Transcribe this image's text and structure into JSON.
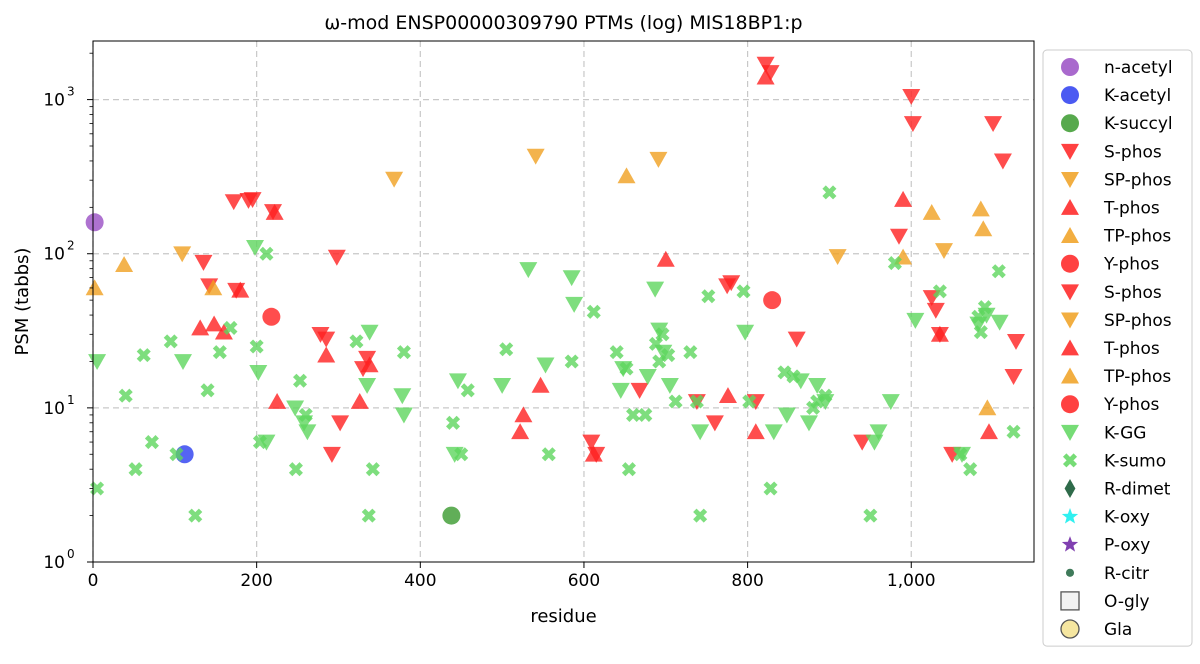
{
  "chart_data": {
    "type": "scatter",
    "title": "ω-mod ENSP00000309790 PTMs (log) MIS18BP1:p",
    "xlabel": "residue",
    "ylabel": "PSM (tabbs)",
    "xlim": [
      0,
      1150
    ],
    "ylim": [
      1,
      2400
    ],
    "yscale": "log",
    "grid": true,
    "legend_placement": "right-outside",
    "x_ticks": [
      {
        "value": 0,
        "label": "0"
      },
      {
        "value": 200,
        "label": "200"
      },
      {
        "value": 400,
        "label": "400"
      },
      {
        "value": 600,
        "label": "600"
      },
      {
        "value": 800,
        "label": "800"
      },
      {
        "value": 1000,
        "label": "1,000"
      }
    ],
    "y_ticks": [
      {
        "value": 1,
        "base": "10",
        "exp": "0"
      },
      {
        "value": 10,
        "base": "10",
        "exp": "1"
      },
      {
        "value": 100,
        "base": "10",
        "exp": "2"
      },
      {
        "value": 1000,
        "base": "10",
        "exp": "3"
      }
    ],
    "legend": [
      {
        "label": "n-acetyl",
        "marker": "circle",
        "color": "#9a4fc4"
      },
      {
        "label": "K-acetyl",
        "marker": "circle",
        "color": "#2b3df0"
      },
      {
        "label": "K-succyl",
        "marker": "circle",
        "color": "#3a9a2e"
      },
      {
        "label": "S-phos",
        "marker": "triangle-down",
        "color": "#ff2020"
      },
      {
        "label": "SP-phos",
        "marker": "triangle-down",
        "color": "#f0a020"
      },
      {
        "label": "T-phos",
        "marker": "triangle-up",
        "color": "#ff2020"
      },
      {
        "label": "TP-phos",
        "marker": "triangle-up",
        "color": "#f0a020"
      },
      {
        "label": "Y-phos",
        "marker": "circle",
        "color": "#ff2020"
      },
      {
        "label": "S-phos",
        "marker": "triangle-down",
        "color": "#ff2020"
      },
      {
        "label": "SP-phos",
        "marker": "triangle-down",
        "color": "#f0a020"
      },
      {
        "label": "T-phos",
        "marker": "triangle-up",
        "color": "#ff2020"
      },
      {
        "label": "TP-phos",
        "marker": "triangle-up",
        "color": "#f0a020"
      },
      {
        "label": "Y-phos",
        "marker": "circle",
        "color": "#ff2020"
      },
      {
        "label": "K-GG",
        "marker": "triangle-down",
        "color": "#5ed65e"
      },
      {
        "label": "K-sumo",
        "marker": "x",
        "color": "#5ed65e"
      },
      {
        "label": "R-dimet",
        "marker": "diamond",
        "color": "#2f6b4a"
      },
      {
        "label": "K-oxy",
        "marker": "star",
        "color": "#30f0f0"
      },
      {
        "label": "P-oxy",
        "marker": "star",
        "color": "#8040b0"
      },
      {
        "label": "R-citr",
        "marker": "small-circle",
        "color": "#3f7a5a"
      },
      {
        "label": "O-gly",
        "marker": "square",
        "color": "#f2f2f2"
      },
      {
        "label": "Gla",
        "marker": "circle-outline",
        "color": "#f5e6a0"
      }
    ],
    "series": [
      {
        "name": "n-acetyl",
        "marker": "circle",
        "color": "#9a4fc4",
        "points": [
          [
            2,
            160
          ]
        ]
      },
      {
        "name": "K-acetyl",
        "marker": "circle",
        "color": "#2b3df0",
        "points": [
          [
            112,
            5
          ]
        ]
      },
      {
        "name": "K-succyl",
        "marker": "circle",
        "color": "#3a9a2e",
        "points": [
          [
            438,
            2
          ]
        ]
      },
      {
        "name": "S-phos",
        "marker": "triangle-down",
        "color": "#ff2020",
        "points": [
          [
            135,
            88
          ],
          [
            142,
            62
          ],
          [
            175,
            58
          ],
          [
            172,
            218
          ],
          [
            190,
            222
          ],
          [
            195,
            225
          ],
          [
            220,
            188
          ],
          [
            278,
            30
          ],
          [
            285,
            28
          ],
          [
            292,
            5
          ],
          [
            298,
            95
          ],
          [
            302,
            8
          ],
          [
            330,
            18
          ],
          [
            335,
            21
          ],
          [
            609,
            6
          ],
          [
            615,
            5
          ],
          [
            668,
            13
          ],
          [
            738,
            11
          ],
          [
            760,
            8
          ],
          [
            775,
            62
          ],
          [
            780,
            65
          ],
          [
            810,
            11
          ],
          [
            822,
            1700
          ],
          [
            828,
            1500
          ],
          [
            860,
            28
          ],
          [
            940,
            6
          ],
          [
            985,
            130
          ],
          [
            1000,
            1050
          ],
          [
            1002,
            700
          ],
          [
            1025,
            52
          ],
          [
            1030,
            43
          ],
          [
            1050,
            5
          ],
          [
            1100,
            700
          ],
          [
            1112,
            400
          ],
          [
            1125,
            16
          ],
          [
            1128,
            27
          ],
          [
            1035,
            30
          ]
        ]
      },
      {
        "name": "SP-phos",
        "marker": "triangle-down",
        "color": "#f0a020",
        "points": [
          [
            109,
            100
          ],
          [
            368,
            305
          ],
          [
            541,
            430
          ],
          [
            691,
            410
          ],
          [
            910,
            96
          ],
          [
            1040,
            105
          ]
        ]
      },
      {
        "name": "T-phos",
        "marker": "triangle-up",
        "color": "#ff2020",
        "points": [
          [
            131,
            33
          ],
          [
            148,
            35
          ],
          [
            160,
            31
          ],
          [
            180,
            58
          ],
          [
            222,
            185
          ],
          [
            225,
            11
          ],
          [
            285,
            22
          ],
          [
            326,
            11
          ],
          [
            338,
            19
          ],
          [
            522,
            7
          ],
          [
            526,
            9
          ],
          [
            547,
            14
          ],
          [
            612,
            5
          ],
          [
            700,
            92
          ],
          [
            776,
            12
          ],
          [
            810,
            7
          ],
          [
            822,
            1400
          ],
          [
            990,
            225
          ],
          [
            1035,
            30
          ],
          [
            1095,
            7
          ]
        ]
      },
      {
        "name": "TP-phos",
        "marker": "triangle-up",
        "color": "#f0a020",
        "points": [
          [
            2,
            60
          ],
          [
            38,
            85
          ],
          [
            147,
            60
          ],
          [
            652,
            320
          ],
          [
            990,
            95
          ],
          [
            1025,
            185
          ],
          [
            1085,
            195
          ],
          [
            1088,
            145
          ],
          [
            1093,
            10
          ]
        ]
      },
      {
        "name": "Y-phos",
        "marker": "circle",
        "color": "#ff2020",
        "points": [
          [
            218,
            39
          ],
          [
            830,
            50
          ]
        ]
      },
      {
        "name": "K-GG",
        "marker": "triangle-down",
        "color": "#5ed65e",
        "points": [
          [
            5,
            20
          ],
          [
            110,
            20
          ],
          [
            198,
            110
          ],
          [
            202,
            17
          ],
          [
            212,
            6
          ],
          [
            247,
            10
          ],
          [
            258,
            8
          ],
          [
            262,
            7
          ],
          [
            335,
            14
          ],
          [
            338,
            31
          ],
          [
            378,
            12
          ],
          [
            380,
            9
          ],
          [
            442,
            5
          ],
          [
            446,
            15
          ],
          [
            500,
            14
          ],
          [
            532,
            79
          ],
          [
            553,
            19
          ],
          [
            585,
            70
          ],
          [
            588,
            47
          ],
          [
            645,
            13
          ],
          [
            648,
            18
          ],
          [
            678,
            16
          ],
          [
            687,
            59
          ],
          [
            692,
            32
          ],
          [
            697,
            23
          ],
          [
            705,
            14
          ],
          [
            742,
            7
          ],
          [
            797,
            31
          ],
          [
            832,
            7
          ],
          [
            848,
            9
          ],
          [
            865,
            15
          ],
          [
            875,
            8
          ],
          [
            885,
            14
          ],
          [
            895,
            11
          ],
          [
            955,
            6
          ],
          [
            960,
            7
          ],
          [
            975,
            11
          ],
          [
            1005,
            37
          ],
          [
            1062,
            5
          ],
          [
            1082,
            35
          ],
          [
            1092,
            40
          ],
          [
            1108,
            36
          ]
        ]
      },
      {
        "name": "K-sumo",
        "marker": "x",
        "color": "#5ed65e",
        "points": [
          [
            5,
            3
          ],
          [
            40,
            12
          ],
          [
            52,
            4
          ],
          [
            62,
            22
          ],
          [
            72,
            6
          ],
          [
            95,
            27
          ],
          [
            102,
            5
          ],
          [
            125,
            2
          ],
          [
            140,
            13
          ],
          [
            155,
            23
          ],
          [
            168,
            33
          ],
          [
            200,
            25
          ],
          [
            204,
            6
          ],
          [
            212,
            100
          ],
          [
            248,
            4
          ],
          [
            253,
            15
          ],
          [
            260,
            9
          ],
          [
            322,
            27
          ],
          [
            337,
            2
          ],
          [
            342,
            4
          ],
          [
            380,
            23
          ],
          [
            440,
            8
          ],
          [
            450,
            5
          ],
          [
            458,
            13
          ],
          [
            505,
            24
          ],
          [
            557,
            5
          ],
          [
            585,
            20
          ],
          [
            612,
            42
          ],
          [
            640,
            23
          ],
          [
            652,
            18
          ],
          [
            655,
            4
          ],
          [
            660,
            9
          ],
          [
            675,
            9
          ],
          [
            688,
            26
          ],
          [
            692,
            20
          ],
          [
            696,
            30
          ],
          [
            703,
            22
          ],
          [
            712,
            11
          ],
          [
            730,
            23
          ],
          [
            738,
            11
          ],
          [
            742,
            2
          ],
          [
            752,
            53
          ],
          [
            795,
            57
          ],
          [
            802,
            11
          ],
          [
            828,
            3
          ],
          [
            845,
            17
          ],
          [
            856,
            16
          ],
          [
            880,
            10
          ],
          [
            885,
            11
          ],
          [
            895,
            12
          ],
          [
            900,
            250
          ],
          [
            950,
            2
          ],
          [
            980,
            87
          ],
          [
            1035,
            57
          ],
          [
            1072,
            4
          ],
          [
            1082,
            39
          ],
          [
            1085,
            31
          ],
          [
            1090,
            45
          ],
          [
            1107,
            77
          ],
          [
            1125,
            7
          ],
          [
            1060,
            5
          ]
        ]
      }
    ]
  }
}
